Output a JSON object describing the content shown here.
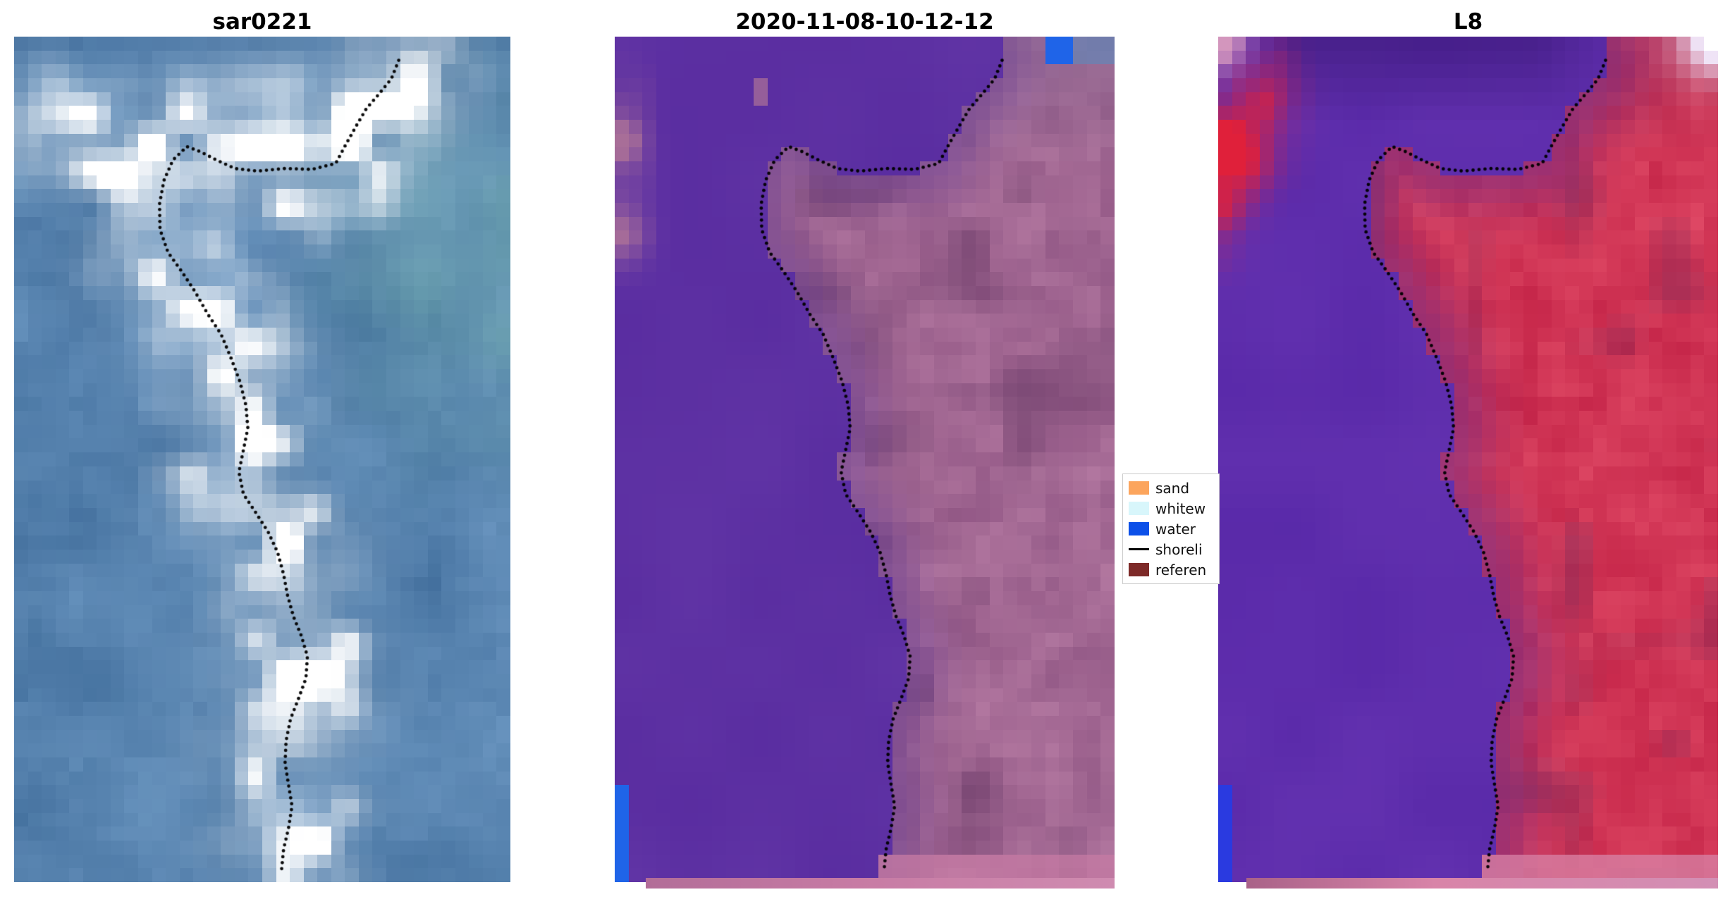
{
  "page": {
    "background": "#ffffff"
  },
  "panels": [
    {
      "id": "sar0221",
      "title": "sar0221",
      "style": "sar",
      "seed": 11,
      "palette": {
        "deep": "#3e6b99",
        "light": "#6f9ac4",
        "white": "#ffffff",
        "green": "#7fc0ae",
        "dark": "#35608f"
      }
    },
    {
      "id": "classified",
      "title": "2020-11-08-10-12-12",
      "style": "classified",
      "seed": 22,
      "palette": {
        "water": "#56299e",
        "water2": "#6236a6",
        "landA": "#8f5583",
        "landB": "#b57aa2",
        "landDark": "#70406c",
        "edgeMix": "#6b3f92",
        "grayTop": "#8e7b9e",
        "pinkPatch": "#a86e98",
        "blue": "#1f64e8",
        "bottomPink": "#c77ba4",
        "stripA": "#b26d98",
        "stripB": "#cf8bb0"
      }
    },
    {
      "id": "l8",
      "title": "L8",
      "style": "l8",
      "seed": 33,
      "palette": {
        "water": "#5526a6",
        "water2": "#6634b2",
        "topDark": "#3b1878",
        "redA": "#c22145",
        "redB": "#e04a66",
        "maroon": "#8f2a55",
        "edgeMix": "#7a2f85",
        "redBlob": "#e0203a",
        "pinkCorner": "#e8a8c0",
        "white": "#f2edff",
        "blue": "#2a3ae0",
        "bottomPink": "#d884a8",
        "stripA": "#a96288",
        "stripB": "#d38fb4"
      }
    }
  ],
  "legend": {
    "entries": [
      {
        "label": "sand",
        "swatch": "#fca55d",
        "kind": "patch"
      },
      {
        "label": "whitew",
        "swatch": "#d8f6fb",
        "kind": "patch"
      },
      {
        "label": "water",
        "swatch": "#0c50e8",
        "kind": "patch"
      },
      {
        "label": "shoreli",
        "swatch": "#000000",
        "kind": "line"
      },
      {
        "label": "referen",
        "swatch": "#7d2a28",
        "kind": "patch"
      }
    ]
  },
  "chart_data": {
    "type": "heatmap",
    "description": "Three-panel coastal satellite comparison figure: SAR backscatter image (sar0221), classified optical scene (2020-11-08-10-12-12), and Landsat-8 (L8) image, each overlaid with the same dotted reference shoreline; class legend between panels 2 and 3",
    "panel_titles": [
      "sar0221",
      "2020-11-08-10-12-12",
      "L8"
    ],
    "legend_entries": [
      "sand",
      "whitew",
      "water",
      "shoreli",
      "referen"
    ],
    "grid": {
      "cols": 36,
      "rows": 61
    },
    "shoreline_points": [
      [
        0.775,
        0.028
      ],
      [
        0.76,
        0.05
      ],
      [
        0.735,
        0.068
      ],
      [
        0.71,
        0.085
      ],
      [
        0.69,
        0.105
      ],
      [
        0.668,
        0.128
      ],
      [
        0.648,
        0.15
      ],
      [
        0.6,
        0.157
      ],
      [
        0.545,
        0.156
      ],
      [
        0.49,
        0.159
      ],
      [
        0.445,
        0.156
      ],
      [
        0.408,
        0.146
      ],
      [
        0.375,
        0.136
      ],
      [
        0.348,
        0.13
      ],
      [
        0.32,
        0.146
      ],
      [
        0.302,
        0.17
      ],
      [
        0.293,
        0.198
      ],
      [
        0.294,
        0.228
      ],
      [
        0.31,
        0.255
      ],
      [
        0.338,
        0.278
      ],
      [
        0.365,
        0.302
      ],
      [
        0.39,
        0.328
      ],
      [
        0.417,
        0.352
      ],
      [
        0.437,
        0.38
      ],
      [
        0.455,
        0.408
      ],
      [
        0.467,
        0.436
      ],
      [
        0.471,
        0.463
      ],
      [
        0.462,
        0.489
      ],
      [
        0.453,
        0.515
      ],
      [
        0.462,
        0.541
      ],
      [
        0.487,
        0.563
      ],
      [
        0.512,
        0.586
      ],
      [
        0.531,
        0.61
      ],
      [
        0.543,
        0.636
      ],
      [
        0.551,
        0.661
      ],
      [
        0.563,
        0.686
      ],
      [
        0.579,
        0.709
      ],
      [
        0.591,
        0.733
      ],
      [
        0.588,
        0.759
      ],
      [
        0.573,
        0.783
      ],
      [
        0.557,
        0.807
      ],
      [
        0.548,
        0.833
      ],
      [
        0.546,
        0.859
      ],
      [
        0.553,
        0.885
      ],
      [
        0.56,
        0.91
      ],
      [
        0.553,
        0.936
      ],
      [
        0.543,
        0.961
      ],
      [
        0.539,
        0.985
      ]
    ]
  }
}
